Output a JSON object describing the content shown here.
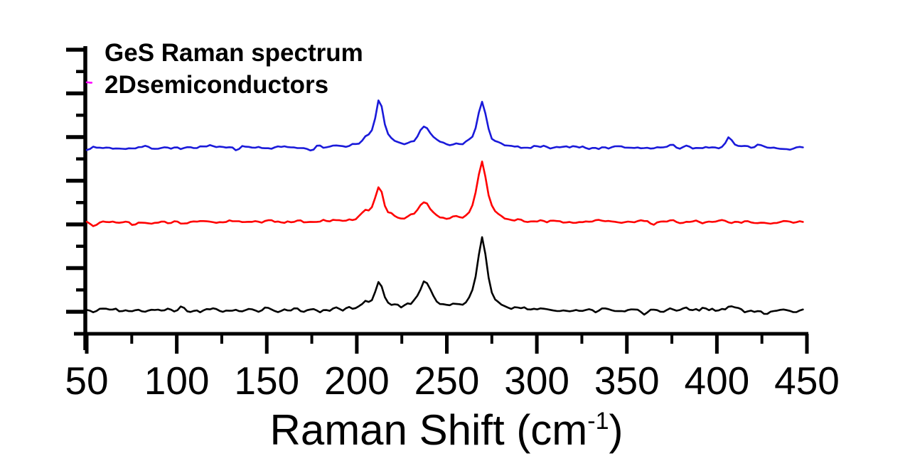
{
  "chart_data": {
    "type": "line",
    "annotation": [
      "GeS Raman spectrum",
      "2Dsemiconductors"
    ],
    "xlabel": {
      "prefix": "Raman Shift (cm",
      "superscript": "-1",
      "suffix": ")"
    },
    "x_axis": {
      "range": [
        50,
        450
      ],
      "major_ticks": [
        50,
        100,
        150,
        200,
        250,
        300,
        350,
        400,
        450
      ],
      "tick_labels": [
        "50",
        "100",
        "150",
        "200",
        "250",
        "300",
        "350",
        "400",
        "450"
      ],
      "minor_tick_step": 25
    },
    "y_axis": {
      "label": "",
      "tick_labels": []
    },
    "series": [
      {
        "name": "spectrum-top-blue",
        "color": "#1a1ada",
        "baseline_offset_frac": 0.647,
        "noise_frac": 0.0072,
        "seed": 7,
        "x_start": 50,
        "x_end": 449,
        "peaks": [
          {
            "center_cm1": 205.0,
            "height_frac": 0.02,
            "hwhm_cm1": 2.5
          },
          {
            "center_cm1": 212.5,
            "height_frac": 0.166,
            "hwhm_cm1": 2.8
          },
          {
            "center_cm1": 238.0,
            "height_frac": 0.072,
            "hwhm_cm1": 4.2
          },
          {
            "center_cm1": 269.5,
            "height_frac": 0.153,
            "hwhm_cm1": 3.0
          },
          {
            "center_cm1": 407.0,
            "height_frac": 0.037,
            "hwhm_cm1": 1.8
          }
        ]
      },
      {
        "name": "spectrum-middle-red",
        "color": "#ff0000",
        "baseline_offset_frac": 0.389,
        "noise_frac": 0.0072,
        "seed": 13,
        "x_start": 50,
        "x_end": 449,
        "peaks": [
          {
            "center_cm1": 205.0,
            "height_frac": 0.022,
            "hwhm_cm1": 2.5
          },
          {
            "center_cm1": 212.5,
            "height_frac": 0.118,
            "hwhm_cm1": 3.0
          },
          {
            "center_cm1": 238.0,
            "height_frac": 0.069,
            "hwhm_cm1": 4.2
          },
          {
            "center_cm1": 269.5,
            "height_frac": 0.207,
            "hwhm_cm1": 3.2
          }
        ]
      },
      {
        "name": "spectrum-bottom-black",
        "color": "#000000",
        "baseline_offset_frac": 0.081,
        "noise_frac": 0.0092,
        "seed": 5,
        "x_start": 50,
        "x_end": 449,
        "peaks": [
          {
            "center_cm1": 205.0,
            "height_frac": 0.018,
            "hwhm_cm1": 2.5
          },
          {
            "center_cm1": 212.5,
            "height_frac": 0.096,
            "hwhm_cm1": 2.8
          },
          {
            "center_cm1": 238.0,
            "height_frac": 0.099,
            "hwhm_cm1": 4.2
          },
          {
            "center_cm1": 269.5,
            "height_frac": 0.255,
            "hwhm_cm1": 3.2
          },
          {
            "center_cm1": 407.0,
            "height_frac": 0.02,
            "hwhm_cm1": 1.8
          }
        ]
      },
      {
        "name": "spectrum-fragment-magenta",
        "color": "#ff00ff",
        "baseline_offset_frac": 0.872,
        "noise_frac": 0.0045,
        "seed": 3,
        "x_start": 50,
        "x_end": 53.5,
        "peaks": []
      }
    ]
  },
  "colors": {
    "axis": "#000000",
    "background": "#ffffff"
  }
}
